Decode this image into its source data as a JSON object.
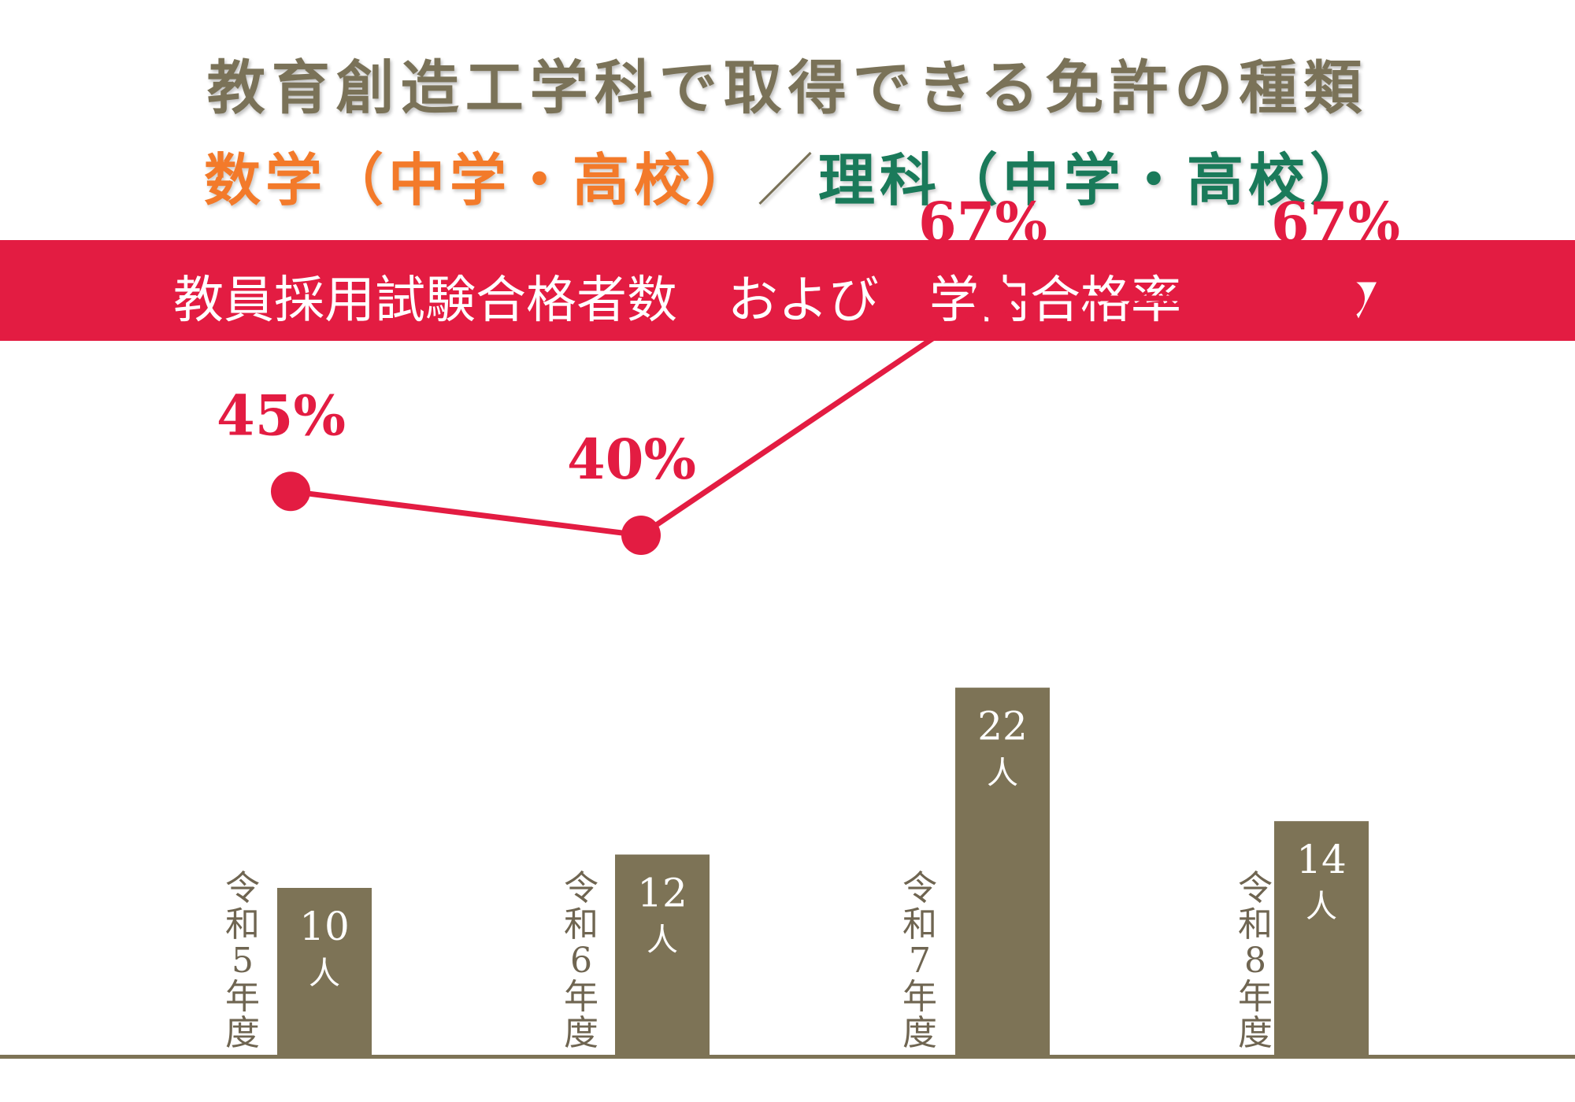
{
  "header": {
    "title": "教育創造工学科で取得できる免許の種類",
    "subtitle_math": "数学（中学・高校）",
    "subtitle_sep": "／",
    "subtitle_science": "理科（中学・高校）"
  },
  "banner": {
    "text": "教員採用試験合格者数　および　学内合格率",
    "arrow": "▼"
  },
  "colors": {
    "bar": "#7d7356",
    "line": "#e31c42",
    "banner": "#e31c42",
    "math": "#f37a2a",
    "science": "#1a7a5a"
  },
  "chart_data": {
    "type": "bar+line",
    "categories": [
      "令和5年度",
      "令和6年度",
      "令和7年度",
      "令和8年度"
    ],
    "series": [
      {
        "type": "bar",
        "values": [
          10,
          12,
          22,
          14
        ],
        "labels_number": [
          "10",
          "12",
          "22",
          "14"
        ],
        "unit": "人"
      },
      {
        "type": "line",
        "values": [
          45,
          40,
          67,
          67
        ],
        "labels": [
          "45%",
          "40%",
          "67%",
          "67%"
        ]
      }
    ]
  }
}
